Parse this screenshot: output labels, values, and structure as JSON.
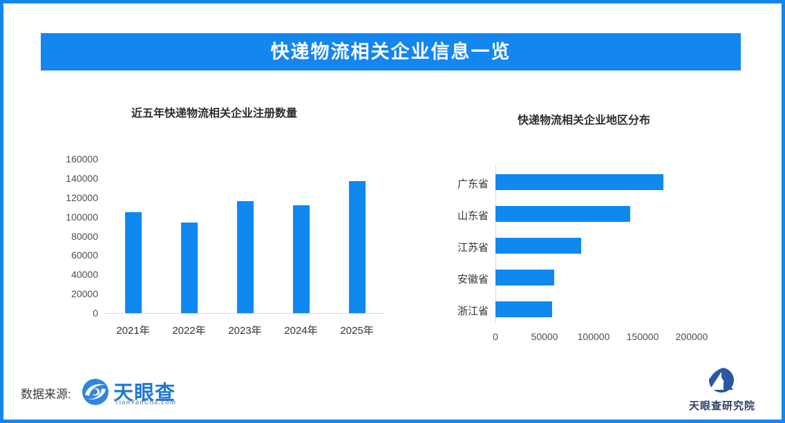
{
  "page": {
    "border_color": "#1486ef",
    "banner_color": "#1486ef",
    "bar_color": "#0f88f0"
  },
  "banner": {
    "title": "快递物流相关企业信息一览"
  },
  "chart_data": [
    {
      "type": "bar",
      "orientation": "vertical",
      "title": "近五年快递物流相关企业注册数量",
      "categories": [
        "2021年",
        "2022年",
        "2023年",
        "2024年",
        "2025年"
      ],
      "values": [
        105000,
        94000,
        116000,
        112000,
        137000
      ],
      "ylim": [
        0,
        160000
      ],
      "yticks": [
        0,
        20000,
        40000,
        60000,
        80000,
        100000,
        120000,
        140000,
        160000
      ],
      "grid": false,
      "bar_color": "#0f88f0"
    },
    {
      "type": "bar",
      "orientation": "horizontal",
      "title": "快递物流相关企业地区分布",
      "categories": [
        "广东省",
        "山东省",
        "江苏省",
        "安徽省",
        "浙江省"
      ],
      "values": [
        171000,
        137000,
        87000,
        60000,
        58000
      ],
      "xlim": [
        0,
        200000
      ],
      "xticks": [
        0,
        50000,
        100000,
        150000,
        200000
      ],
      "grid": false,
      "bar_color": "#0f88f0"
    }
  ],
  "footer": {
    "source_label": "数据来源:",
    "tyc_logo_text": "天眼查",
    "tyc_logo_sub": "TianYanCha.com",
    "institute_logo_text": "天眼查研究院"
  }
}
